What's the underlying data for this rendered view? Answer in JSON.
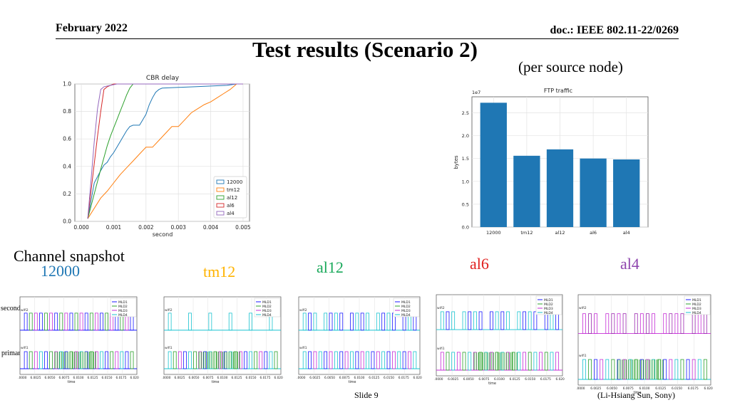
{
  "header": {
    "date": "February 2022",
    "doc": "doc.: IEEE 802.11-22/0269",
    "title": "Test results (Scenario 2)",
    "subtitle": "(per source node)"
  },
  "cdf_chart": {
    "type": "line",
    "title": "CBR delay",
    "xlabel": "second",
    "ylabel": "",
    "xlim": [
      0.0,
      0.005
    ],
    "ylim": [
      0.0,
      1.0
    ],
    "xticks": [
      "0.000",
      "0.001",
      "0.002",
      "0.003",
      "0.004",
      "0.005"
    ],
    "yticks": [
      "0.0",
      "0.2",
      "0.4",
      "0.6",
      "0.8",
      "1.0"
    ],
    "grid": true,
    "legend_position": "lower-right",
    "series": [
      {
        "name": "12000",
        "color": "#1f77b4",
        "x": [
          0.0002,
          0.0004,
          0.0006,
          0.0007,
          0.0008,
          0.0009,
          0.001,
          0.0011,
          0.0012,
          0.0013,
          0.0014,
          0.0015,
          0.0016,
          0.0017,
          0.0018,
          0.0019,
          0.002,
          0.0021,
          0.0022,
          0.0023,
          0.0024,
          0.0025,
          0.003,
          0.0035,
          0.004,
          0.0045,
          0.0048
        ],
        "y": [
          0.02,
          0.28,
          0.37,
          0.41,
          0.43,
          0.47,
          0.5,
          0.54,
          0.58,
          0.62,
          0.66,
          0.69,
          0.7,
          0.7,
          0.7,
          0.74,
          0.78,
          0.85,
          0.9,
          0.94,
          0.96,
          0.97,
          0.975,
          0.98,
          0.985,
          0.99,
          1.0
        ]
      },
      {
        "name": "tm12",
        "color": "#ff7f0e",
        "x": [
          0.0002,
          0.0006,
          0.0008,
          0.001,
          0.0012,
          0.0014,
          0.0016,
          0.0018,
          0.002,
          0.0022,
          0.0024,
          0.0026,
          0.0028,
          0.003,
          0.0032,
          0.0034,
          0.0036,
          0.0038,
          0.004,
          0.0042,
          0.0044,
          0.0046,
          0.0048
        ],
        "y": [
          0.02,
          0.17,
          0.22,
          0.28,
          0.34,
          0.39,
          0.44,
          0.49,
          0.54,
          0.54,
          0.59,
          0.64,
          0.69,
          0.69,
          0.74,
          0.79,
          0.82,
          0.85,
          0.87,
          0.9,
          0.93,
          0.96,
          1.0
        ]
      },
      {
        "name": "al12",
        "color": "#2ca02c",
        "x": [
          0.0002,
          0.0004,
          0.0006,
          0.0008,
          0.0009,
          0.001,
          0.0011,
          0.0012,
          0.0013,
          0.0014,
          0.0015,
          0.0016,
          0.005
        ],
        "y": [
          0.02,
          0.2,
          0.38,
          0.55,
          0.62,
          0.68,
          0.74,
          0.8,
          0.86,
          0.92,
          0.97,
          1.0,
          1.0
        ]
      },
      {
        "name": "al6",
        "color": "#d62728",
        "x": [
          0.0002,
          0.0003,
          0.0004,
          0.0005,
          0.0006,
          0.0007,
          0.0008,
          0.0009,
          0.001,
          0.0012,
          0.005
        ],
        "y": [
          0.02,
          0.22,
          0.42,
          0.62,
          0.8,
          0.96,
          0.98,
          0.99,
          1.0,
          1.0,
          1.0
        ]
      },
      {
        "name": "al4",
        "color": "#9467bd",
        "x": [
          0.0002,
          0.0003,
          0.0004,
          0.0005,
          0.0006,
          0.0007,
          0.0009,
          0.0011,
          0.005
        ],
        "y": [
          0.02,
          0.3,
          0.58,
          0.82,
          0.96,
          0.98,
          0.99,
          1.0,
          1.0
        ]
      }
    ]
  },
  "ftp_chart": {
    "type": "bar",
    "title": "FTP traffic",
    "ylabel": "bytes",
    "scale_label": "1e7",
    "categories": [
      "12000",
      "tm12",
      "al12",
      "al6",
      "al4"
    ],
    "values": [
      2.72,
      1.56,
      1.7,
      1.5,
      1.48
    ],
    "ylim": [
      0.0,
      2.85
    ],
    "yticks": [
      "0.0",
      "0.5",
      "1.0",
      "1.5",
      "2.0",
      "2.5"
    ],
    "bar_color": "#1f77b4",
    "grid": true
  },
  "snapshot": {
    "title": "Channel snapshot",
    "secondary_label": "secondary",
    "primary_label": "primary",
    "labels": [
      {
        "text": "12000",
        "color": "#1f77b4"
      },
      {
        "text": "tm12",
        "color": "#ffb300"
      },
      {
        "text": "al12",
        "color": "#19a85a"
      },
      {
        "text": "al6",
        "color": "#e0201f"
      },
      {
        "text": "al4",
        "color": "#8e44ad"
      }
    ],
    "legend": [
      "MLD1",
      "MLD2",
      "MLD3",
      "MLD4"
    ],
    "legend_colors": [
      "#1a1aff",
      "#2ca02c",
      "#c42dd6",
      "#19c3d0"
    ],
    "wifi2_label": "wifi2",
    "wifi1_label": "wifi1",
    "xlabel": "time",
    "xticks": [
      "6.0000",
      "6.0025",
      "6.0050",
      "6.0075",
      "6.0100",
      "6.0125",
      "6.0150",
      "6.0175",
      "6.0200"
    ]
  },
  "footer": {
    "slide": "Slide 9",
    "author": "(Li-Hsiang Sun, Sony)"
  }
}
